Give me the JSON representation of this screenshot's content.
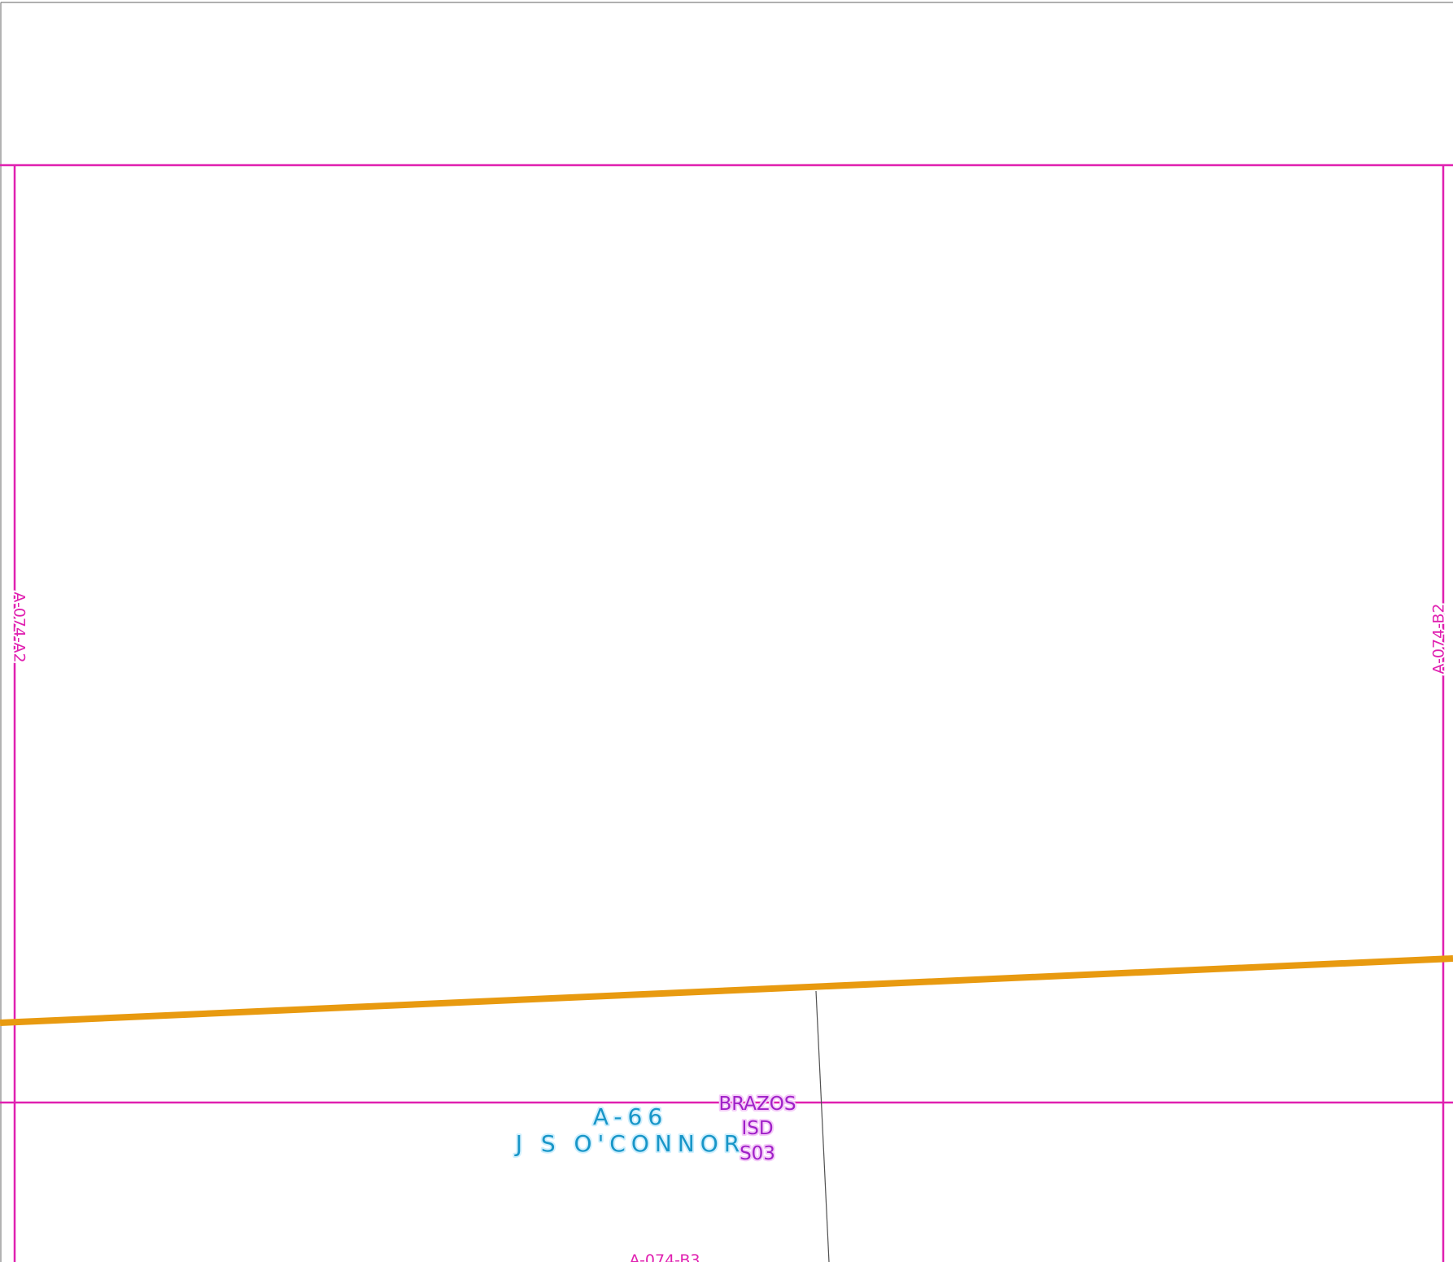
{
  "map": {
    "colors": {
      "background": "#ffffff",
      "grid_line": "#e020b0",
      "road": "#e89a10",
      "parcel_line": "#505050",
      "frame": "#808080",
      "abstract_text": "#1896c8",
      "district_text": "#a020c8",
      "grid_label": "#e020b0"
    },
    "grid_labels": {
      "left": "A-074-A2",
      "right": "A-074-B2",
      "bottom": "A-074-B3"
    },
    "abstract": {
      "number": "A-66",
      "name": "J S O'CONNOR"
    },
    "school_district": {
      "line1": "BRAZOS",
      "line2": "ISD",
      "line3": "S03"
    }
  }
}
